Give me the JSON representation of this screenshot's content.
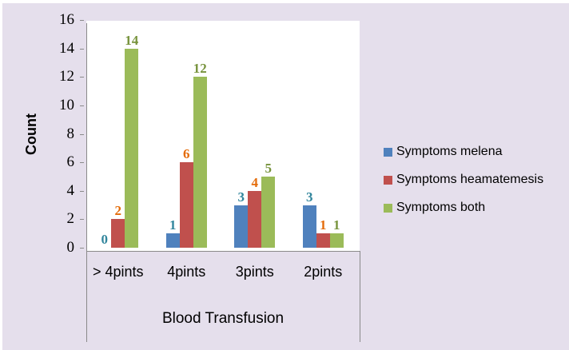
{
  "chart_data": {
    "type": "bar",
    "title": "",
    "xlabel": "Blood Transfusion",
    "ylabel": "Count",
    "categories": [
      "> 4pints",
      "4pints",
      "3pints",
      "2pints"
    ],
    "series": [
      {
        "name": "Symptoms melena",
        "values": [
          0,
          1,
          3,
          3
        ],
        "bar_color": "#4F81BD",
        "label_color": "#31859C"
      },
      {
        "name": "Symptoms heamatemesis",
        "values": [
          2,
          6,
          4,
          1
        ],
        "bar_color": "#C0504D",
        "label_color": "#E46C0A"
      },
      {
        "name": "Symptoms both",
        "values": [
          14,
          12,
          5,
          1
        ],
        "bar_color": "#9BBB59",
        "label_color": "#77933C"
      }
    ],
    "ylim": [
      0,
      16
    ],
    "ytick_step": 2,
    "grid": false,
    "legend_position": "right",
    "data_labels": true
  },
  "colors": {
    "canvas_bg": "#E5DFEC",
    "plot_bg": "#FFFFFF",
    "axis_line": "#8A8A8A",
    "tick_text": "#000000",
    "category_text": "#000000",
    "legend_text": "#000000"
  }
}
